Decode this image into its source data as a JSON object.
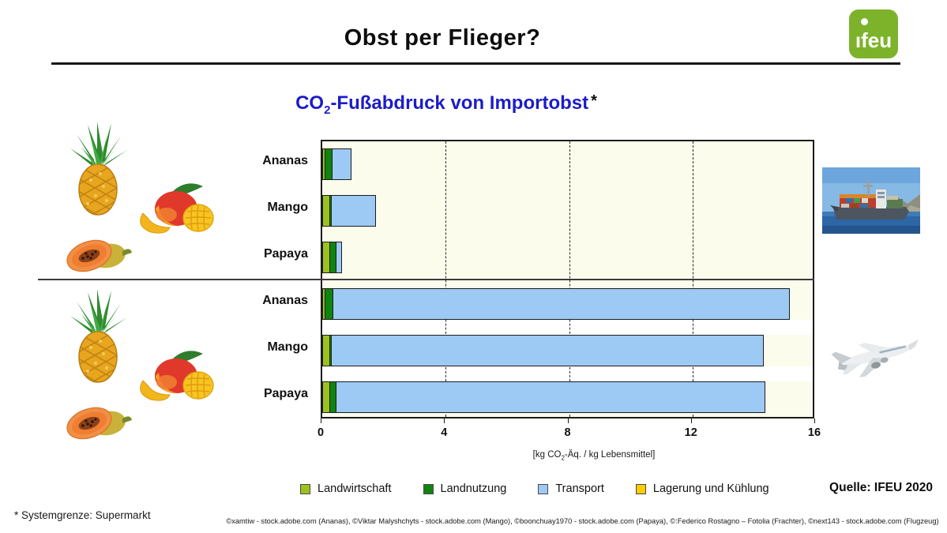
{
  "header": {
    "title": "Obst per Flieger?",
    "logo_text": "ıfeu"
  },
  "subtitle": {
    "prefix": "CO",
    "sub": "2",
    "suffix": "-Fußabdruck von Importobst",
    "asterisk": "*"
  },
  "chart_data": {
    "type": "bar",
    "orientation": "horizontal",
    "title": "CO2-Fußabdruck von Importobst*",
    "xlabel": "[kg CO2-Äq. / kg Lebensmittel]",
    "xlim": [
      0,
      16
    ],
    "xticks": [
      0,
      4,
      8,
      12,
      16
    ],
    "gridlines_dashed_at": [
      4,
      8,
      12
    ],
    "series_names": [
      "Landwirtschaft",
      "Landnutzung",
      "Transport",
      "Lagerung und Kühlung"
    ],
    "series_colors": [
      "#9cc21e",
      "#108410",
      "#9ccaf5",
      "#ffcc00"
    ],
    "groups": [
      {
        "transport_mode": "Frachter (Schiff)",
        "rows": [
          {
            "category": "Ananas",
            "values": [
              0.05,
              0.22,
              0.62,
              0
            ],
            "total": 0.9
          },
          {
            "category": "Mango",
            "values": [
              0.2,
              0.05,
              1.45,
              0
            ],
            "total": 1.7
          },
          {
            "category": "Papaya",
            "values": [
              0.2,
              0.2,
              0.2,
              0
            ],
            "total": 0.6
          }
        ]
      },
      {
        "transport_mode": "Flugzeug",
        "rows": [
          {
            "category": "Ananas",
            "values": [
              0.05,
              0.25,
              14.8,
              0
            ],
            "total": 15.1
          },
          {
            "category": "Mango",
            "values": [
              0.2,
              0.05,
              14.0,
              0
            ],
            "total": 14.25
          },
          {
            "category": "Papaya",
            "values": [
              0.2,
              0.2,
              13.9,
              0
            ],
            "total": 14.3
          }
        ]
      }
    ]
  },
  "axis_unit": {
    "prefix": "[kg CO",
    "sub": "2",
    "suffix": "-Äq. / kg Lebensmittel]"
  },
  "legend": {
    "items": [
      {
        "label": "Landwirtschaft",
        "color": "#9cc21e"
      },
      {
        "label": "Landnutzung",
        "color": "#108410"
      },
      {
        "label": "Transport",
        "color": "#9ccaf5"
      },
      {
        "label": "Lagerung und Kühlung",
        "color": "#ffcc00"
      }
    ]
  },
  "source": "Quelle: IFEU 2020",
  "footnote": "* Systemgrenze: Supermarkt",
  "credits": "©xamtiw - stock.adobe.com (Ananas), ©Viktar Malyshchyts - stock.adobe.com (Mango), ©boonchuay1970 - stock.adobe.com (Papaya), ©:Federico Rostagno – Fotolia (Frachter), ©next143 - stock.adobe.com (Flugzeug)",
  "colors": {
    "subtitle_blue": "#1c1cc8",
    "plot_background": "#fcfcec",
    "logo_green": "#7db32a"
  }
}
